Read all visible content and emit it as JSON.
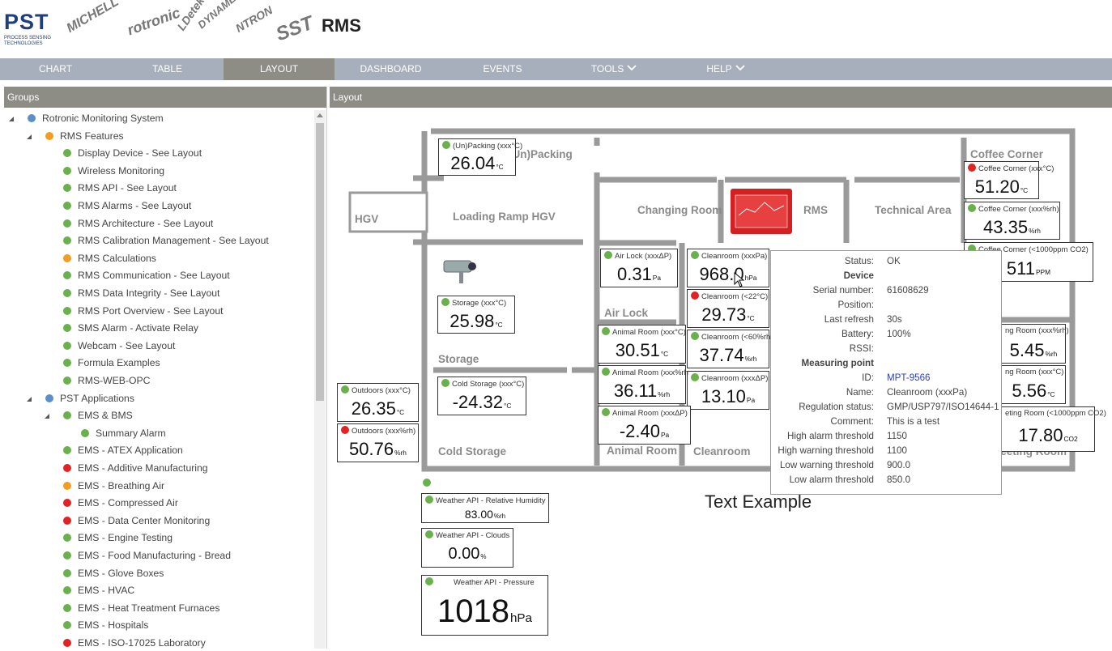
{
  "header": {
    "brand": "PST",
    "brand_sub": "PROCESS SENSING TECHNOLOGIES",
    "partners": [
      "MICHELL",
      "rotronic",
      "LDetek",
      "DYNAMENT",
      "NTRON",
      "SST"
    ],
    "title": "RMS"
  },
  "nav": {
    "items": [
      {
        "label": "CHART"
      },
      {
        "label": "TABLE"
      },
      {
        "label": "LAYOUT",
        "active": true
      },
      {
        "label": "DASHBOARD"
      },
      {
        "label": "EVENTS"
      },
      {
        "label": "TOOLS",
        "menu": true
      },
      {
        "label": "HELP",
        "menu": true
      }
    ]
  },
  "sidebar": {
    "title": "Groups",
    "tree": [
      {
        "label": "Rotronic Monitoring System",
        "status": "#5b8fc9",
        "children": [
          {
            "label": "RMS Features",
            "status": "#f39c21",
            "children": [
              {
                "label": "Display Device - See Layout",
                "status": "#6ab04c"
              },
              {
                "label": "Wireless Monitoring",
                "status": "#6ab04c"
              },
              {
                "label": "RMS API - See Layout",
                "status": "#6ab04c"
              },
              {
                "label": "RMS Alarms - See Layout",
                "status": "#6ab04c"
              },
              {
                "label": "RMS Architecture - See Layout",
                "status": "#6ab04c"
              },
              {
                "label": "RMS Calibration Management - See Layout",
                "status": "#6ab04c"
              },
              {
                "label": "RMS Calculations",
                "status": "#f39c21"
              },
              {
                "label": "RMS Communication - See Layout",
                "status": "#6ab04c"
              },
              {
                "label": "RMS Data Integrity - See Layout",
                "status": "#6ab04c"
              },
              {
                "label": "RMS Port Overview - See Layout",
                "status": "#6ab04c"
              },
              {
                "label": "SMS Alarm - Activate Relay",
                "status": "#6ab04c"
              },
              {
                "label": "Webcam - See Layout",
                "status": "#6ab04c"
              },
              {
                "label": "Formula Examples",
                "status": "#6ab04c"
              },
              {
                "label": "RMS-WEB-OPC",
                "status": "#6ab04c"
              }
            ]
          },
          {
            "label": "PST Applications",
            "status": "#5b8fc9",
            "children": [
              {
                "label": "EMS & BMS",
                "status": "#6ab04c",
                "children": [
                  {
                    "label": "Summary Alarm",
                    "status": "#6ab04c"
                  }
                ]
              },
              {
                "label": "EMS - ATEX Application",
                "status": "#6ab04c"
              },
              {
                "label": "EMS - Additive Manufacturing",
                "status": "#e02424"
              },
              {
                "label": "EMS - Breathing Air",
                "status": "#f39c21"
              },
              {
                "label": "EMS - Compressed Air",
                "status": "#e02424"
              },
              {
                "label": "EMS - Data Center Monitoring",
                "status": "#e02424"
              },
              {
                "label": "EMS - Engine Testing",
                "status": "#6ab04c"
              },
              {
                "label": "EMS - Food Manufacturing - Bread",
                "status": "#6ab04c"
              },
              {
                "label": "EMS - Glove Boxes",
                "status": "#6ab04c"
              },
              {
                "label": "EMS - HVAC",
                "status": "#6ab04c"
              },
              {
                "label": "EMS - Heat Treatment Furnaces",
                "status": "#6ab04c"
              },
              {
                "label": "EMS - Hospitals",
                "status": "#6ab04c"
              },
              {
                "label": "EMS - ISO-17025 Laboratory",
                "status": "#e02424"
              }
            ]
          }
        ]
      }
    ]
  },
  "layout": {
    "title": "Layout",
    "rooms": [
      "HGV",
      "Loading Ramp HGV",
      "(Un)Packing",
      "Changing Room",
      "RMS",
      "Technical Area",
      "Coffee Corner",
      "Air Lock",
      "Storage",
      "Cold Storage",
      "Animal Room",
      "Cleanroom",
      "Meeting Room"
    ],
    "widgets": [
      {
        "title": "(Un)Packing (xxx°C)",
        "value": "26.04",
        "unit": "°C",
        "status": "#6ab04c"
      },
      {
        "title": "Storage (xxx°C)",
        "value": "25.98",
        "unit": "°C",
        "status": "#6ab04c"
      },
      {
        "title": "Cold Storage (xxx°C)",
        "value": "-24.32",
        "unit": "°C",
        "status": "#6ab04c"
      },
      {
        "title": "Outdoors (xxx°C)",
        "value": "26.35",
        "unit": "°C",
        "status": "#6ab04c"
      },
      {
        "title": "Outdoors (xxx%rh)",
        "value": "50.76",
        "unit": "%rh",
        "status": "#e02424"
      },
      {
        "title": "Air Lock (xxxΔP)",
        "value": "0.31",
        "unit": "Pa",
        "status": "#6ab04c"
      },
      {
        "title": "Cleanroom (xxxPa)",
        "value": "968.0",
        "unit": "hPa",
        "status": "#6ab04c"
      },
      {
        "title": "Cleanroom (<22°C)",
        "value": "29.73",
        "unit": "°C",
        "status": "#e02424"
      },
      {
        "title": "Cleanroom (<60%rh",
        "value": "37.74",
        "unit": "%rh",
        "status": "#6ab04c"
      },
      {
        "title": "Cleanroom (xxxΔP)",
        "value": "13.10",
        "unit": "Pa",
        "status": "#6ab04c"
      },
      {
        "title": "Animal Room (xxx°C)",
        "value": "30.51",
        "unit": "°C",
        "status": "#6ab04c"
      },
      {
        "title": "Animal Room (xxx%rh",
        "value": "36.11",
        "unit": "%rh",
        "status": "#6ab04c"
      },
      {
        "title": "Animal Room (xxxΔP)",
        "value": "-2.40",
        "unit": "Pa",
        "status": "#6ab04c"
      },
      {
        "title": "Coffee Corner (xxx°C)",
        "value": "51.20",
        "unit": "°C",
        "status": "#e02424"
      },
      {
        "title": "Coffee Corner (xxx%rh)",
        "value": "43.35",
        "unit": "%rh",
        "status": "#6ab04c"
      },
      {
        "title": "Coffee Corner (<1000ppm CO2)",
        "value": "511",
        "unit": "PPM",
        "status": "#6ab04c"
      },
      {
        "title": "ng Room (xxx%rh)",
        "value": "5.45",
        "unit": "%rh"
      },
      {
        "title": "ng Room (xxx°C)",
        "value": "5.56",
        "unit": "°C"
      },
      {
        "title": "eting Room (<1000ppm CO2)",
        "value": "17.80",
        "unit": "CO2"
      },
      {
        "title": "Weather API - Relative Humidity",
        "value": "83.00",
        "unit": "%rh",
        "status": "#6ab04c"
      },
      {
        "title": "Weather API - Clouds",
        "value": "0.00",
        "unit": "%",
        "status": "#6ab04c"
      },
      {
        "title": "Weather API - Pressure",
        "value": "1018",
        "unit": "hPa",
        "status": "#6ab04c"
      }
    ],
    "indicator": {
      "status": "#6ab04c"
    },
    "text": "Text Example",
    "tooltip": {
      "rows": [
        {
          "label": "Status:",
          "value": "OK"
        },
        {
          "section": "Device"
        },
        {
          "label": "Serial number:",
          "value": "61608629"
        },
        {
          "label": "Position:",
          "value": ""
        },
        {
          "label": "Last refresh",
          "value": "30s"
        },
        {
          "label": "Battery:",
          "value": "100%"
        },
        {
          "label": "RSSI:",
          "value": ""
        },
        {
          "section": "Measuring point"
        },
        {
          "label": "ID:",
          "value": "MPT-9566",
          "link": true
        },
        {
          "label": "Name:",
          "value": "Cleanroom (xxxPa)"
        },
        {
          "label": "Regulation status:",
          "value": "GMP/USP797/ISO14644-1"
        },
        {
          "label": "Comment:",
          "value": "This is a test"
        },
        {
          "label": "High alarm threshold",
          "value": "1150"
        },
        {
          "label": "High warning threshold",
          "value": "1100"
        },
        {
          "label": "Low warning threshold",
          "value": "900.0"
        },
        {
          "label": "Low alarm threshold",
          "value": "850.0"
        }
      ]
    }
  }
}
